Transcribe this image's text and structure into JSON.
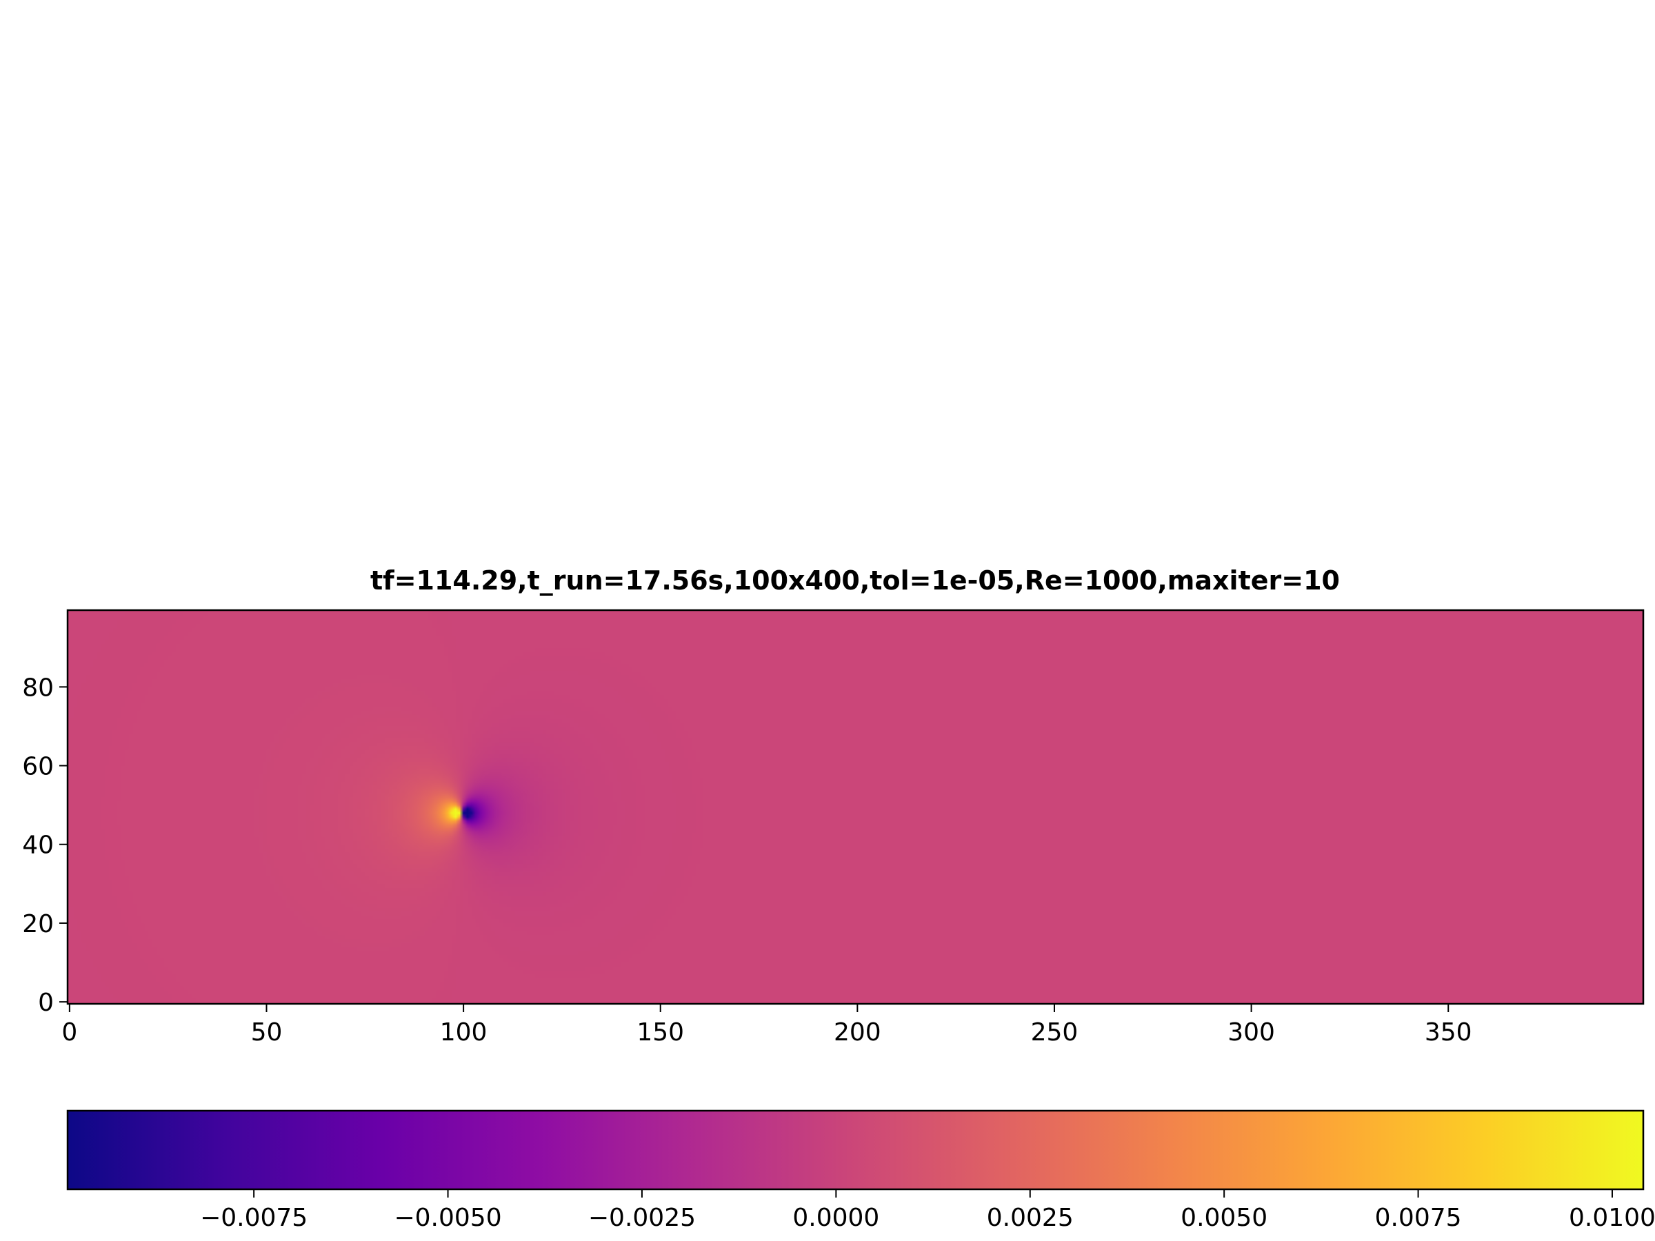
{
  "chart_data": {
    "type": "heatmap",
    "title": "tf=114.29,t_run=17.56s,100x400,tol=1e-05,Re=1000,maxiter=10",
    "xlabel": "",
    "ylabel": "",
    "grid": false,
    "colormap": "plasma",
    "grid_shape": [
      100,
      400
    ],
    "xlim": [
      0,
      399
    ],
    "ylim": [
      0,
      99
    ],
    "x_ticks": [
      0,
      50,
      100,
      150,
      200,
      250,
      300,
      350
    ],
    "y_ticks": [
      0,
      20,
      40,
      60,
      80
    ],
    "x_tick_labels": [
      "0",
      "50",
      "100",
      "150",
      "200",
      "250",
      "300",
      "350"
    ],
    "y_tick_labels": [
      "0",
      "20",
      "40",
      "60",
      "80"
    ],
    "field_description": "near-zero background (~0.0002) with a dipole centred at x≈100, y≈48: positive lobe (max ≈ 0.0104) just left of centre, negative lobe (min ≈ -0.0099) just right of centre",
    "background_value": 0.0002,
    "dipole": {
      "x": 100,
      "y": 48,
      "max": 0.0104,
      "min": -0.0099
    },
    "colorbar": {
      "orientation": "horizontal",
      "vmin": -0.0099,
      "vmax": 0.0104,
      "ticks": [
        -0.0075,
        -0.005,
        -0.0025,
        0.0,
        0.0025,
        0.005,
        0.0075,
        0.01
      ],
      "tick_labels": [
        "−0.0075",
        "−0.0050",
        "−0.0025",
        "0.0000",
        "0.0025",
        "0.0050",
        "0.0075",
        "0.0100"
      ]
    }
  }
}
